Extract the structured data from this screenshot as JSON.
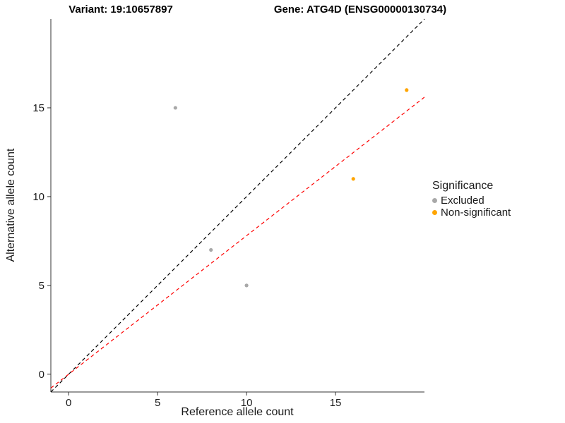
{
  "titles": {
    "variant": "Variant: 19:10657897",
    "gene": "Gene: ATG4D (ENSG00000130734)"
  },
  "chart_data": {
    "type": "scatter",
    "title": "Variant: 19:10657897  Gene: ATG4D (ENSG00000130734)",
    "xlabel": "Reference allele count",
    "ylabel": "Alternative allele count",
    "xlim": [
      -1,
      20
    ],
    "ylim": [
      -1,
      20
    ],
    "xticks": [
      0,
      5,
      10,
      15
    ],
    "yticks": [
      0,
      5,
      10,
      15
    ],
    "grid": false,
    "legend": {
      "title": "Significance",
      "position": "right",
      "entries": [
        {
          "label": "Excluded",
          "color": "#a8a8a8"
        },
        {
          "label": "Non-significant",
          "color": "#FFA500"
        }
      ]
    },
    "series": [
      {
        "name": "Excluded",
        "color": "#a8a8a8",
        "points": [
          [
            6,
            15
          ],
          [
            8,
            7
          ],
          [
            10,
            5
          ]
        ]
      },
      {
        "name": "Non-significant",
        "color": "#FFA500",
        "points": [
          [
            16,
            11
          ],
          [
            19,
            16
          ]
        ]
      }
    ],
    "lines": [
      {
        "name": "identity",
        "slope": 1,
        "intercept": 0,
        "color": "#000000",
        "dash": "5,4"
      },
      {
        "name": "fit",
        "slope": 0.78,
        "intercept": 0,
        "color": "#FF0000",
        "dash": "5,4"
      }
    ]
  }
}
